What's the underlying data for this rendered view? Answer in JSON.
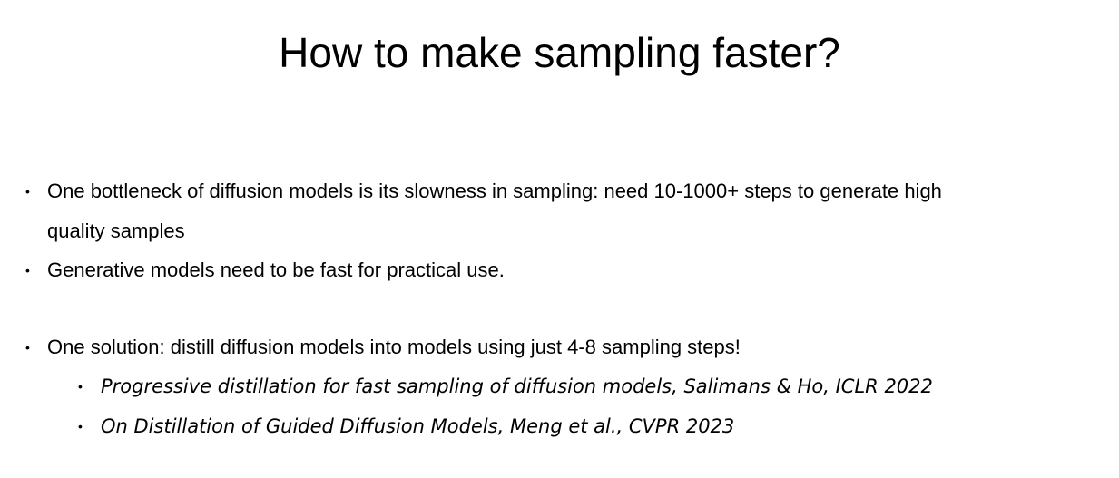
{
  "slide": {
    "title": "How to make sampling faster?",
    "bullets": [
      {
        "line1": "One bottleneck of diffusion models is its slowness in sampling: need 10-1000+ steps to generate high",
        "line2": "quality samples"
      },
      {
        "line1": "Generative models need to be fast for practical use."
      },
      {
        "line1": "One solution: distill diffusion models into models using just 4-8 sampling steps!"
      }
    ],
    "sub_bullets": [
      "Progressive distillation for fast sampling of diffusion models, Salimans & Ho, ICLR 2022",
      "On Distillation of Guided Diffusion Models, Meng et al., CVPR 2023"
    ],
    "bullet_glyph": "•"
  }
}
